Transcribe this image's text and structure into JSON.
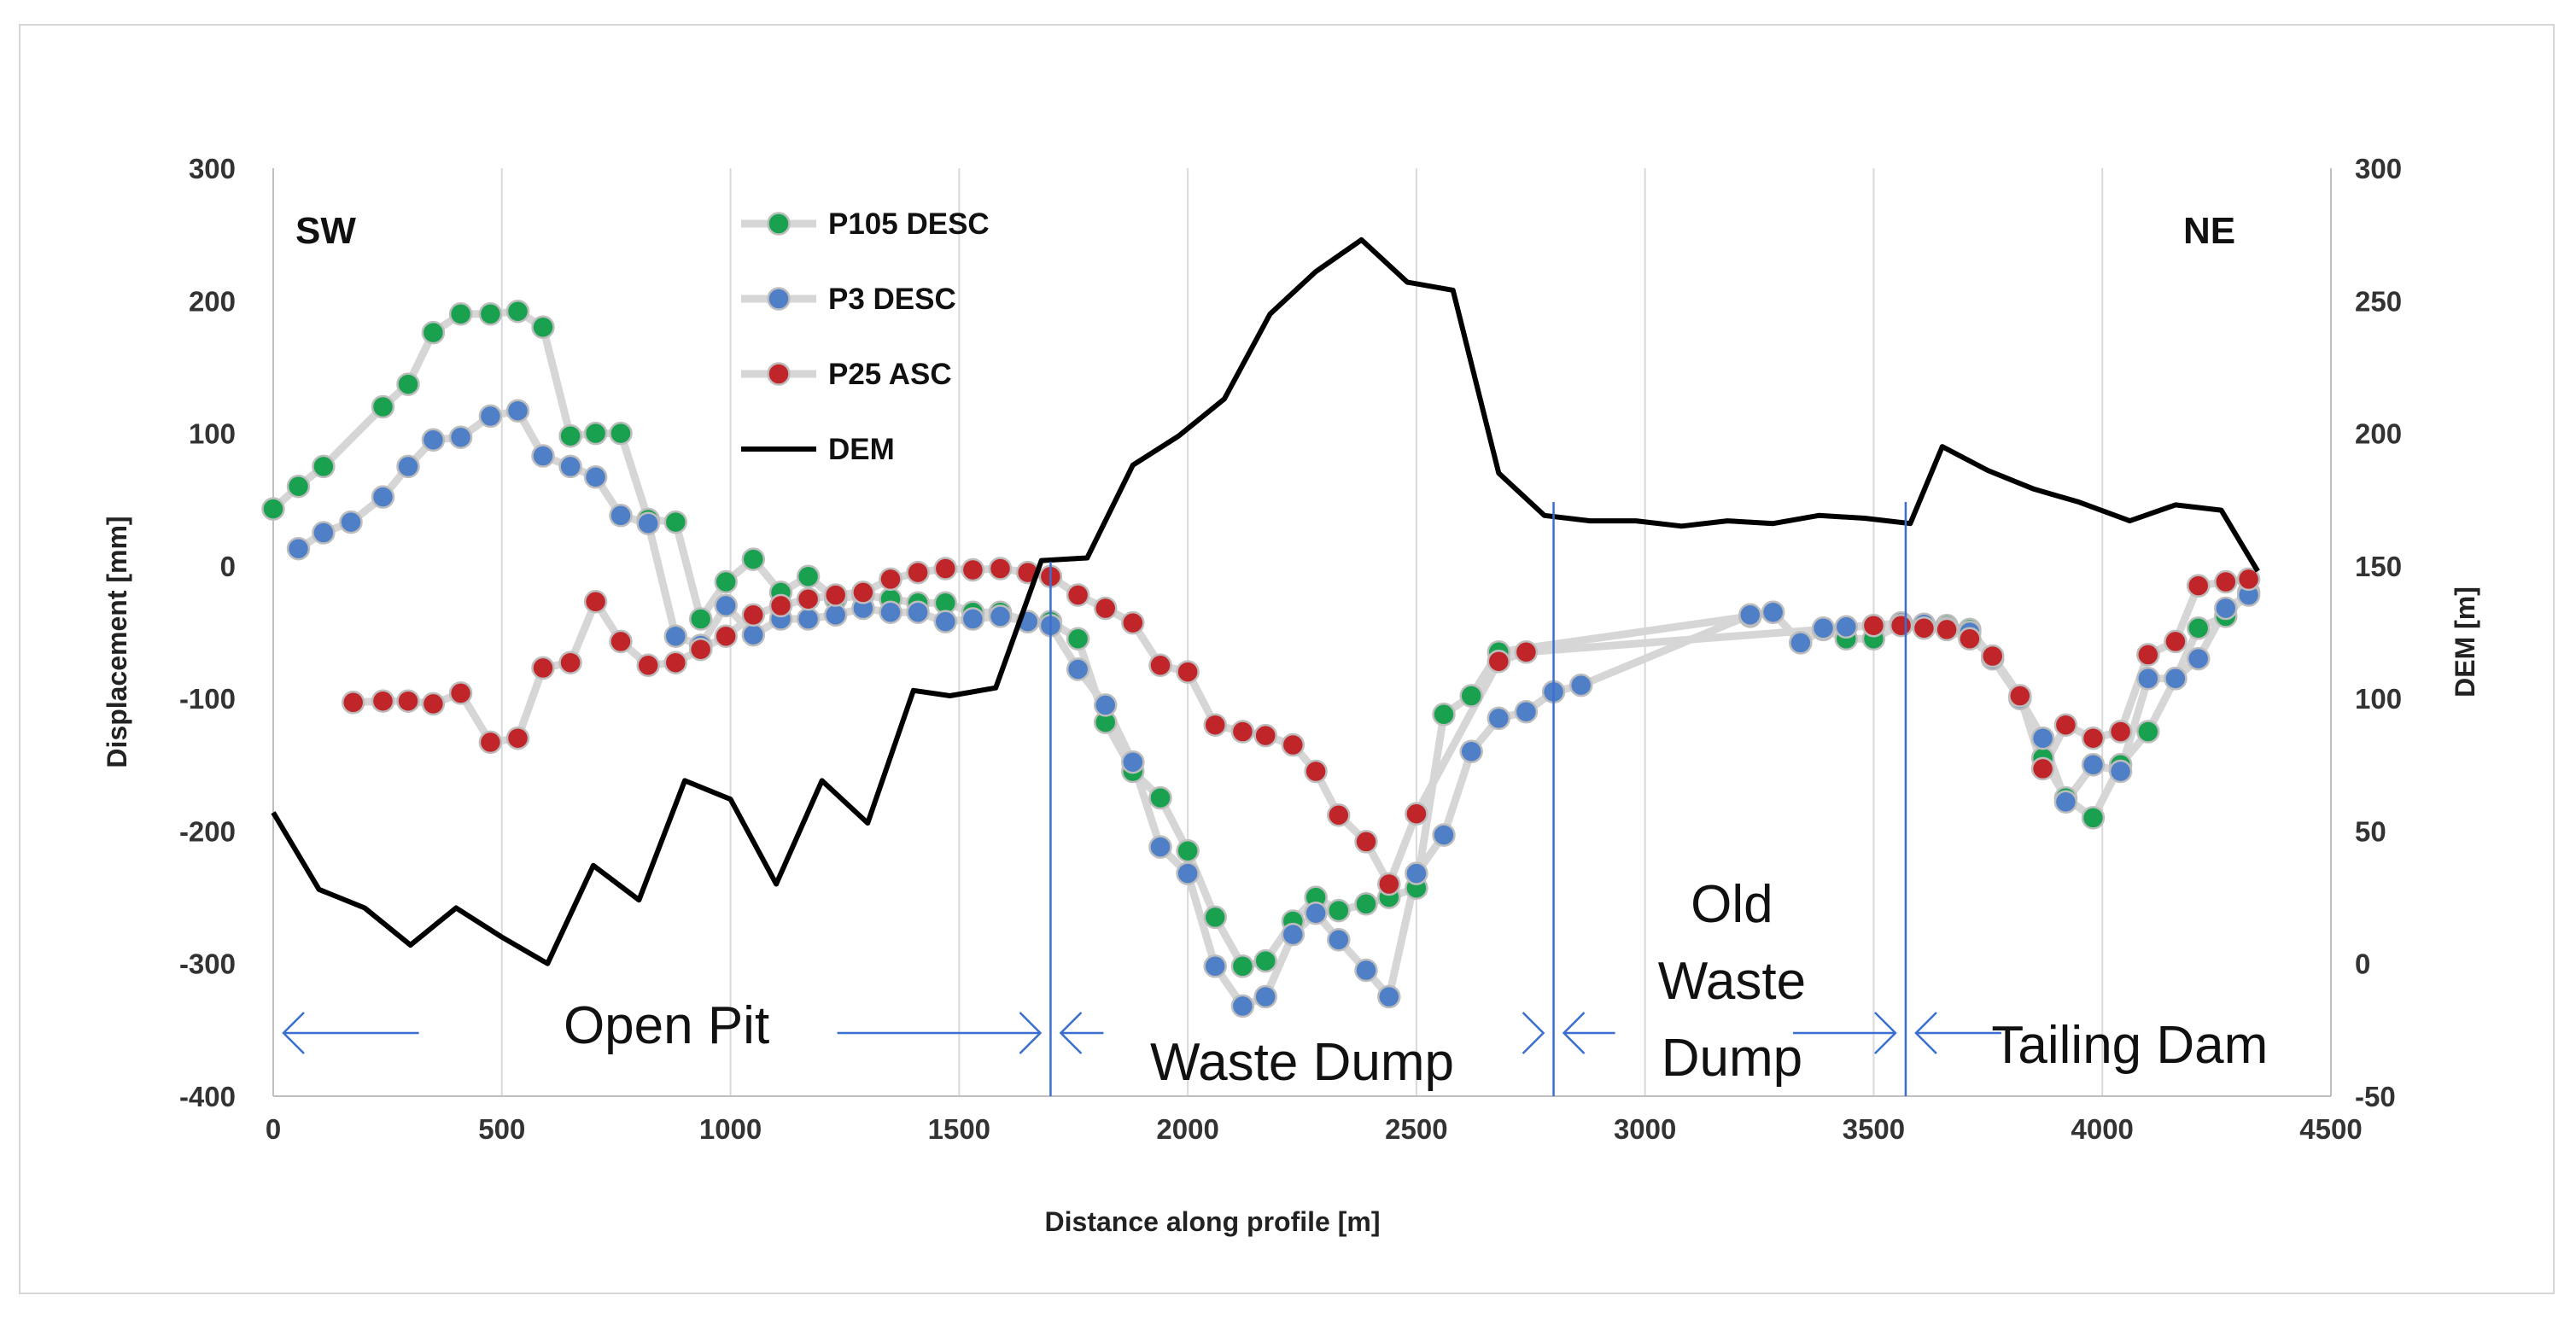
{
  "chart_data": {
    "type": "scatter",
    "corner_labels": {
      "left": "SW",
      "right": "NE"
    },
    "x_axis": {
      "label": "Distance along profile [m]",
      "range": [
        0,
        4500
      ],
      "ticks": [
        0,
        500,
        1000,
        1500,
        2000,
        2500,
        3000,
        3500,
        4000,
        4500
      ]
    },
    "y_axis": {
      "label": "Displacement [mm]",
      "range": [
        -400,
        300
      ],
      "ticks": [
        -400,
        -300,
        -200,
        -100,
        0,
        100,
        200,
        300
      ]
    },
    "y2_axis": {
      "label": "DEM [m]",
      "range": [
        -50,
        300
      ],
      "ticks": [
        -50,
        0,
        50,
        100,
        150,
        200,
        250,
        300
      ]
    },
    "grid": "vertical",
    "series": [
      {
        "name": "P105 DESC",
        "color": "#1aa150",
        "axis": "left",
        "marker": "circle",
        "points": [
          [
            0,
            43
          ],
          [
            55,
            60
          ],
          [
            110,
            75
          ],
          [
            240,
            120
          ],
          [
            295,
            137
          ],
          [
            350,
            176
          ],
          [
            410,
            190
          ],
          [
            475,
            190
          ],
          [
            535,
            192
          ],
          [
            590,
            180
          ],
          [
            650,
            98
          ],
          [
            705,
            100
          ],
          [
            760,
            100
          ],
          [
            820,
            35
          ],
          [
            880,
            33
          ],
          [
            935,
            -40
          ],
          [
            990,
            -12
          ],
          [
            1050,
            5
          ],
          [
            1110,
            -20
          ],
          [
            1170,
            -8
          ],
          [
            1230,
            -25
          ],
          [
            1290,
            -22
          ],
          [
            1350,
            -25
          ],
          [
            1410,
            -28
          ],
          [
            1470,
            -28
          ],
          [
            1530,
            -35
          ],
          [
            1590,
            -35
          ],
          [
            1650,
            -42
          ],
          [
            1700,
            -42
          ],
          [
            1760,
            -55
          ],
          [
            1820,
            -118
          ],
          [
            1880,
            -155
          ],
          [
            1940,
            -175
          ],
          [
            2000,
            -215
          ],
          [
            2060,
            -265
          ],
          [
            2120,
            -302
          ],
          [
            2170,
            -298
          ],
          [
            2230,
            -268
          ],
          [
            2280,
            -250
          ],
          [
            2330,
            -260
          ],
          [
            2390,
            -255
          ],
          [
            2440,
            -250
          ],
          [
            2500,
            -243
          ],
          [
            2560,
            -112
          ],
          [
            2620,
            -98
          ],
          [
            2680,
            -65
          ],
          [
            3230,
            -38
          ],
          [
            3280,
            -35
          ],
          [
            3340,
            -58
          ],
          [
            3390,
            -48
          ],
          [
            3440,
            -55
          ],
          [
            3500,
            -55
          ],
          [
            3560,
            -44
          ],
          [
            3610,
            -45
          ],
          [
            3660,
            -45
          ],
          [
            3710,
            -48
          ],
          [
            3760,
            -70
          ],
          [
            3820,
            -100
          ],
          [
            3870,
            -145
          ],
          [
            3920,
            -175
          ],
          [
            3980,
            -190
          ],
          [
            4040,
            -150
          ],
          [
            4100,
            -125
          ],
          [
            4160,
            -85
          ],
          [
            4210,
            -47
          ],
          [
            4270,
            -38
          ],
          [
            4320,
            -20
          ]
        ]
      },
      {
        "name": "P3 DESC",
        "color": "#4f7fc6",
        "axis": "left",
        "marker": "circle",
        "points": [
          [
            55,
            13
          ],
          [
            110,
            25
          ],
          [
            170,
            33
          ],
          [
            240,
            52
          ],
          [
            295,
            75
          ],
          [
            350,
            95
          ],
          [
            410,
            97
          ],
          [
            475,
            113
          ],
          [
            535,
            117
          ],
          [
            590,
            83
          ],
          [
            650,
            75
          ],
          [
            705,
            67
          ],
          [
            760,
            38
          ],
          [
            820,
            32
          ],
          [
            880,
            -53
          ],
          [
            935,
            -60
          ],
          [
            990,
            -30
          ],
          [
            1050,
            -52
          ],
          [
            1110,
            -40
          ],
          [
            1170,
            -40
          ],
          [
            1230,
            -37
          ],
          [
            1290,
            -32
          ],
          [
            1350,
            -35
          ],
          [
            1410,
            -35
          ],
          [
            1470,
            -42
          ],
          [
            1530,
            -40
          ],
          [
            1590,
            -38
          ],
          [
            1650,
            -42
          ],
          [
            1700,
            -45
          ],
          [
            1760,
            -78
          ],
          [
            1820,
            -105
          ],
          [
            1880,
            -148
          ],
          [
            1940,
            -212
          ],
          [
            2000,
            -232
          ],
          [
            2060,
            -302
          ],
          [
            2120,
            -332
          ],
          [
            2170,
            -325
          ],
          [
            2230,
            -278
          ],
          [
            2280,
            -262
          ],
          [
            2330,
            -282
          ],
          [
            2390,
            -305
          ],
          [
            2440,
            -325
          ],
          [
            2500,
            -232
          ],
          [
            2560,
            -203
          ],
          [
            2620,
            -140
          ],
          [
            2680,
            -115
          ],
          [
            2740,
            -110
          ],
          [
            2800,
            -95
          ],
          [
            2860,
            -90
          ],
          [
            3230,
            -37
          ],
          [
            3280,
            -35
          ],
          [
            3340,
            -58
          ],
          [
            3390,
            -47
          ],
          [
            3440,
            -46
          ],
          [
            3500,
            -45
          ],
          [
            3560,
            -43
          ],
          [
            3610,
            -44
          ],
          [
            3660,
            -47
          ],
          [
            3710,
            -50
          ],
          [
            3760,
            -70
          ],
          [
            3820,
            -100
          ],
          [
            3870,
            -130
          ],
          [
            3920,
            -178
          ],
          [
            3980,
            -150
          ],
          [
            4040,
            -155
          ],
          [
            4100,
            -85
          ],
          [
            4160,
            -85
          ],
          [
            4210,
            -70
          ],
          [
            4270,
            -32
          ],
          [
            4320,
            -22
          ]
        ]
      },
      {
        "name": "P25 ASC",
        "color": "#c0252a",
        "axis": "left",
        "marker": "circle",
        "points": [
          [
            175,
            -103
          ],
          [
            240,
            -102
          ],
          [
            295,
            -102
          ],
          [
            350,
            -104
          ],
          [
            410,
            -96
          ],
          [
            475,
            -133
          ],
          [
            535,
            -130
          ],
          [
            590,
            -77
          ],
          [
            650,
            -73
          ],
          [
            705,
            -27
          ],
          [
            760,
            -57
          ],
          [
            820,
            -75
          ],
          [
            880,
            -73
          ],
          [
            935,
            -63
          ],
          [
            990,
            -53
          ],
          [
            1050,
            -37
          ],
          [
            1110,
            -30
          ],
          [
            1170,
            -25
          ],
          [
            1230,
            -22
          ],
          [
            1290,
            -20
          ],
          [
            1350,
            -10
          ],
          [
            1410,
            -5
          ],
          [
            1470,
            -2
          ],
          [
            1530,
            -3
          ],
          [
            1590,
            -2
          ],
          [
            1650,
            -5
          ],
          [
            1700,
            -8
          ],
          [
            1760,
            -22
          ],
          [
            1820,
            -32
          ],
          [
            1880,
            -43
          ],
          [
            1940,
            -75
          ],
          [
            2000,
            -80
          ],
          [
            2060,
            -120
          ],
          [
            2120,
            -125
          ],
          [
            2170,
            -128
          ],
          [
            2230,
            -135
          ],
          [
            2280,
            -155
          ],
          [
            2330,
            -188
          ],
          [
            2390,
            -208
          ],
          [
            2440,
            -240
          ],
          [
            2500,
            -187
          ],
          [
            2680,
            -72
          ],
          [
            2740,
            -65
          ],
          [
            3500,
            -45
          ],
          [
            3560,
            -45
          ],
          [
            3610,
            -47
          ],
          [
            3660,
            -48
          ],
          [
            3710,
            -55
          ],
          [
            3760,
            -68
          ],
          [
            3820,
            -98
          ],
          [
            3870,
            -153
          ],
          [
            3920,
            -120
          ],
          [
            3980,
            -130
          ],
          [
            4040,
            -125
          ],
          [
            4100,
            -67
          ],
          [
            4160,
            -57
          ],
          [
            4210,
            -15
          ],
          [
            4270,
            -12
          ],
          [
            4320,
            -10
          ]
        ]
      },
      {
        "name": "DEM",
        "color": "#000000",
        "axis": "right",
        "marker": "line",
        "points": [
          [
            0,
            57
          ],
          [
            100,
            28
          ],
          [
            200,
            21
          ],
          [
            300,
            7
          ],
          [
            400,
            21
          ],
          [
            500,
            10
          ],
          [
            600,
            0
          ],
          [
            700,
            37
          ],
          [
            800,
            24
          ],
          [
            900,
            69
          ],
          [
            1000,
            62
          ],
          [
            1100,
            30
          ],
          [
            1200,
            69
          ],
          [
            1300,
            53
          ],
          [
            1400,
            103
          ],
          [
            1480,
            101
          ],
          [
            1580,
            104
          ],
          [
            1680,
            152
          ],
          [
            1780,
            153
          ],
          [
            1880,
            188
          ],
          [
            1980,
            199
          ],
          [
            2080,
            213
          ],
          [
            2180,
            245
          ],
          [
            2280,
            261
          ],
          [
            2380,
            273
          ],
          [
            2480,
            257
          ],
          [
            2580,
            254
          ],
          [
            2680,
            185
          ],
          [
            2780,
            169
          ],
          [
            2880,
            167
          ],
          [
            2980,
            167
          ],
          [
            3080,
            165
          ],
          [
            3180,
            167
          ],
          [
            3280,
            166
          ],
          [
            3380,
            169
          ],
          [
            3480,
            168
          ],
          [
            3580,
            166
          ],
          [
            3650,
            195
          ],
          [
            3750,
            186
          ],
          [
            3850,
            179
          ],
          [
            3950,
            174
          ],
          [
            4060,
            167
          ],
          [
            4160,
            173
          ],
          [
            4260,
            171
          ],
          [
            4340,
            148
          ]
        ]
      }
    ],
    "legend": {
      "position": "top-left",
      "entries": [
        "P105 DESC",
        "P3 DESC",
        "P25 ASC",
        "DEM"
      ]
    },
    "boundaries": [
      1700,
      2800,
      3570
    ],
    "zones": [
      {
        "lines": [
          "Open Pit"
        ],
        "x_center": 860,
        "arrow": [
          0,
          1700
        ]
      },
      {
        "lines": [
          "Waste Dump"
        ],
        "x_center": 2250,
        "arrow": [
          1700,
          2800
        ]
      },
      {
        "lines": [
          "Old",
          "Waste",
          "Dump"
        ],
        "x_center": 3190,
        "arrow": [
          2800,
          3570
        ]
      },
      {
        "lines": [
          "Tailing Dam"
        ],
        "x_center": 4060,
        "arrow": [
          3570,
          4340
        ]
      }
    ]
  }
}
